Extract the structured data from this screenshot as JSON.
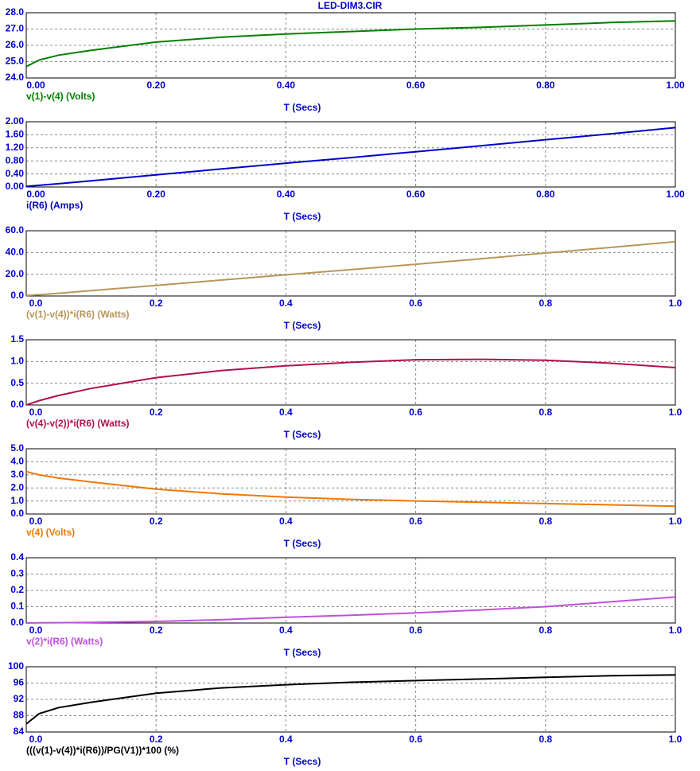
{
  "chart_data": [
    {
      "type": "line",
      "title": "LED-DIM3.CIR",
      "x_label": "T (Secs)",
      "x": [
        0,
        0.02,
        0.05,
        0.1,
        0.2,
        0.3,
        0.4,
        0.5,
        0.6,
        0.7,
        0.8,
        0.9,
        1.0
      ],
      "series": [
        {
          "name": "v(1)-v(4) (Volts)",
          "color": "#008000",
          "values": [
            24.7,
            25.1,
            25.4,
            25.7,
            26.2,
            26.5,
            26.7,
            26.85,
            27.0,
            27.1,
            27.25,
            27.4,
            27.5
          ]
        }
      ],
      "xlim": [
        0,
        1
      ],
      "xticks": [
        {
          "value": 0,
          "label": "0.00"
        },
        {
          "value": 0.2,
          "label": "0.20"
        },
        {
          "value": 0.4,
          "label": "0.40"
        },
        {
          "value": 0.6,
          "label": "0.60"
        },
        {
          "value": 0.8,
          "label": "0.80"
        },
        {
          "value": 1,
          "label": "1.00"
        }
      ],
      "ylim": [
        24,
        28
      ],
      "yticks": [
        {
          "value": 24,
          "label": "24.0"
        },
        {
          "value": 25,
          "label": "25.0"
        },
        {
          "value": 26,
          "label": "26.0"
        },
        {
          "value": 27,
          "label": "27.0"
        },
        {
          "value": 28,
          "label": "28.0"
        }
      ],
      "grid": true
    },
    {
      "type": "line",
      "x_label": "T (Secs)",
      "x": [
        0,
        0.02,
        0.05,
        0.1,
        0.2,
        0.3,
        0.4,
        0.5,
        0.6,
        0.7,
        0.8,
        0.9,
        1.0
      ],
      "series": [
        {
          "name": "i(R6) (Amps)",
          "color": "#0000cc",
          "values": [
            0.02,
            0.05,
            0.1,
            0.19,
            0.37,
            0.55,
            0.73,
            0.9,
            1.08,
            1.26,
            1.45,
            1.63,
            1.82
          ]
        }
      ],
      "xlim": [
        0,
        1
      ],
      "xticks": [
        {
          "value": 0,
          "label": "0.00"
        },
        {
          "value": 0.2,
          "label": "0.20"
        },
        {
          "value": 0.4,
          "label": "0.40"
        },
        {
          "value": 0.6,
          "label": "0.60"
        },
        {
          "value": 0.8,
          "label": "0.80"
        },
        {
          "value": 1,
          "label": "1.00"
        }
      ],
      "ylim": [
        0,
        2
      ],
      "yticks": [
        {
          "value": 0,
          "label": "0.00"
        },
        {
          "value": 0.4,
          "label": "0.40"
        },
        {
          "value": 0.8,
          "label": "0.80"
        },
        {
          "value": 1.2,
          "label": "1.20"
        },
        {
          "value": 1.6,
          "label": "1.60"
        },
        {
          "value": 2,
          "label": "2.00"
        }
      ],
      "grid": true
    },
    {
      "type": "line",
      "x_label": "T (Secs)",
      "x": [
        0,
        0.02,
        0.05,
        0.1,
        0.2,
        0.3,
        0.4,
        0.5,
        0.6,
        0.7,
        0.8,
        0.9,
        1.0
      ],
      "series": [
        {
          "name": "(v(1)-v(4))*i(R6) (Watts)",
          "color": "#b8965a",
          "values": [
            0.5,
            1.2,
            2.5,
            4.9,
            9.7,
            14.6,
            19.5,
            24.2,
            29.2,
            34.2,
            39.5,
            44.6,
            50.0
          ]
        }
      ],
      "xlim": [
        0,
        1
      ],
      "xticks": [
        {
          "value": 0,
          "label": "0.0"
        },
        0.2,
        0.4,
        0.6,
        0.8,
        {
          "value": 1,
          "label": "1.0"
        }
      ],
      "ylim": [
        0,
        60
      ],
      "yticks": [
        {
          "value": 0,
          "label": "0.0"
        },
        {
          "value": 20,
          "label": "20.0"
        },
        {
          "value": 40,
          "label": "40.0"
        },
        {
          "value": 60,
          "label": "60.0"
        }
      ],
      "grid": true
    },
    {
      "type": "line",
      "x_label": "T (Secs)",
      "x": [
        0,
        0.02,
        0.05,
        0.1,
        0.2,
        0.3,
        0.4,
        0.5,
        0.6,
        0.7,
        0.8,
        0.9,
        1.0
      ],
      "series": [
        {
          "name": "(v(4)-v(2))*i(R6) (Watts)",
          "color": "#b0104f",
          "values": [
            0,
            0.1,
            0.22,
            0.38,
            0.63,
            0.79,
            0.9,
            0.98,
            1.04,
            1.05,
            1.03,
            0.96,
            0.86
          ]
        }
      ],
      "xlim": [
        0,
        1
      ],
      "xticks": [
        {
          "value": 0,
          "label": "0.0"
        },
        0.2,
        0.4,
        0.6,
        0.8,
        {
          "value": 1,
          "label": "1.0"
        }
      ],
      "ylim": [
        0,
        1.5
      ],
      "yticks": [
        {
          "value": 0,
          "label": "0.0"
        },
        0.5,
        {
          "value": 1,
          "label": "1.0"
        },
        1.5
      ],
      "grid": true
    },
    {
      "type": "line",
      "x_label": "T (Secs)",
      "x": [
        0,
        0.02,
        0.05,
        0.1,
        0.2,
        0.3,
        0.4,
        0.5,
        0.6,
        0.7,
        0.8,
        0.9,
        1.0
      ],
      "series": [
        {
          "name": "v(4) (Volts)",
          "color": "#f07800",
          "values": [
            3.25,
            3.0,
            2.75,
            2.45,
            1.9,
            1.55,
            1.3,
            1.12,
            1.0,
            0.9,
            0.8,
            0.7,
            0.6
          ]
        }
      ],
      "xlim": [
        0,
        1
      ],
      "xticks": [
        {
          "value": 0,
          "label": "0.0"
        },
        0.2,
        0.4,
        0.6,
        0.8,
        {
          "value": 1,
          "label": "1.0"
        }
      ],
      "ylim": [
        0,
        5
      ],
      "yticks": [
        {
          "value": 0,
          "label": "0.0"
        },
        {
          "value": 1,
          "label": "1.0"
        },
        {
          "value": 2,
          "label": "2.0"
        },
        {
          "value": 3,
          "label": "3.0"
        },
        {
          "value": 4,
          "label": "4.0"
        },
        {
          "value": 5,
          "label": "5.0"
        }
      ],
      "grid": true
    },
    {
      "type": "line",
      "x_label": "T (Secs)",
      "x": [
        0,
        0.02,
        0.05,
        0.1,
        0.2,
        0.3,
        0.4,
        0.5,
        0.6,
        0.7,
        0.8,
        0.9,
        1.0
      ],
      "series": [
        {
          "name": "v(2)*i(R6) (Watts)",
          "color": "#c050e0",
          "values": [
            0,
            0.001,
            0.002,
            0.004,
            0.01,
            0.02,
            0.035,
            0.048,
            0.062,
            0.08,
            0.1,
            0.13,
            0.16
          ]
        }
      ],
      "xlim": [
        0,
        1
      ],
      "xticks": [
        {
          "value": 0,
          "label": "0.0"
        },
        0.2,
        0.4,
        0.6,
        0.8,
        {
          "value": 1,
          "label": "1.0"
        }
      ],
      "ylim": [
        0,
        0.4
      ],
      "yticks": [
        {
          "value": 0,
          "label": "0.0"
        },
        0.1,
        0.2,
        0.3,
        0.4
      ],
      "grid": true
    },
    {
      "type": "line",
      "x_label": "T (Secs)",
      "x": [
        0,
        0.02,
        0.05,
        0.1,
        0.2,
        0.3,
        0.4,
        0.5,
        0.6,
        0.7,
        0.8,
        0.9,
        1.0
      ],
      "series": [
        {
          "name": "(((v(1)-v(4))*i(R6))/PG(V1))*100 (%)",
          "color": "#000000",
          "values": [
            86,
            88.5,
            90,
            91.3,
            93.5,
            94.8,
            95.6,
            96.2,
            96.6,
            97.0,
            97.4,
            97.8,
            98.0
          ]
        }
      ],
      "xlim": [
        0,
        1
      ],
      "xticks": [
        {
          "value": 0,
          "label": "0.0"
        },
        0.2,
        0.4,
        0.6,
        0.8,
        {
          "value": 1,
          "label": "1.0"
        }
      ],
      "ylim": [
        84,
        100
      ],
      "yticks": [
        84,
        88,
        92,
        96,
        100
      ],
      "grid": true
    }
  ]
}
